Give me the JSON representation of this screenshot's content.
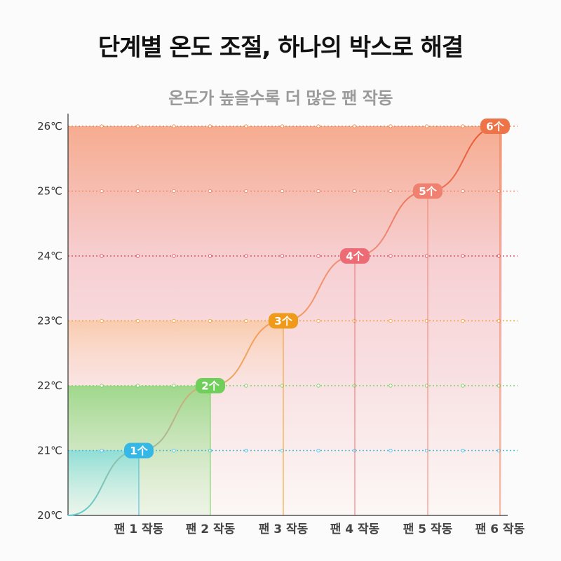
{
  "page": {
    "title": "단계별 온도 조절, 하나의 박스로 해결",
    "subtitle": "온도가 높을수록 더 많은 팬 작동"
  },
  "chart_data": {
    "type": "line",
    "title": "단계별 온도 조절, 하나의 박스로 해결",
    "subtitle": "온도가 높을수록 더 많은 팬 작동",
    "categories": [
      "팬 1 작동",
      "팬 2 작동",
      "팬 3 작동",
      "팬 4 작동",
      "팬 5 작동",
      "팬 6 작동"
    ],
    "y_ticks": [
      "20℃",
      "21℃",
      "22℃",
      "23℃",
      "24℃",
      "25℃",
      "26℃"
    ],
    "ylim": [
      20,
      26
    ],
    "grid": true,
    "points": [
      {
        "x": "팬 1 작동",
        "y": 21,
        "label": "1个",
        "color": "#35b8e6"
      },
      {
        "x": "팬 2 작동",
        "y": 22,
        "label": "2个",
        "color": "#6fcf5a"
      },
      {
        "x": "팬 3 작동",
        "y": 23,
        "label": "3个",
        "color": "#f09a1c"
      },
      {
        "x": "팬 4 작동",
        "y": 24,
        "label": "4个",
        "color": "#ec6b75"
      },
      {
        "x": "팬 5 작동",
        "y": 25,
        "label": "5个",
        "color": "#f08070"
      },
      {
        "x": "팬 6 작동",
        "y": 26,
        "label": "6个",
        "color": "#ee7448"
      }
    ],
    "colors": {
      "line_start": "#5fcdd0",
      "line_mid": "#f5a35a",
      "line_end": "#e8552c",
      "band_top": "#f5a384",
      "band_mid": "#f6c8cc",
      "band_low_green": "#8fd67c",
      "band_low_teal": "#7fdcdc"
    }
  }
}
